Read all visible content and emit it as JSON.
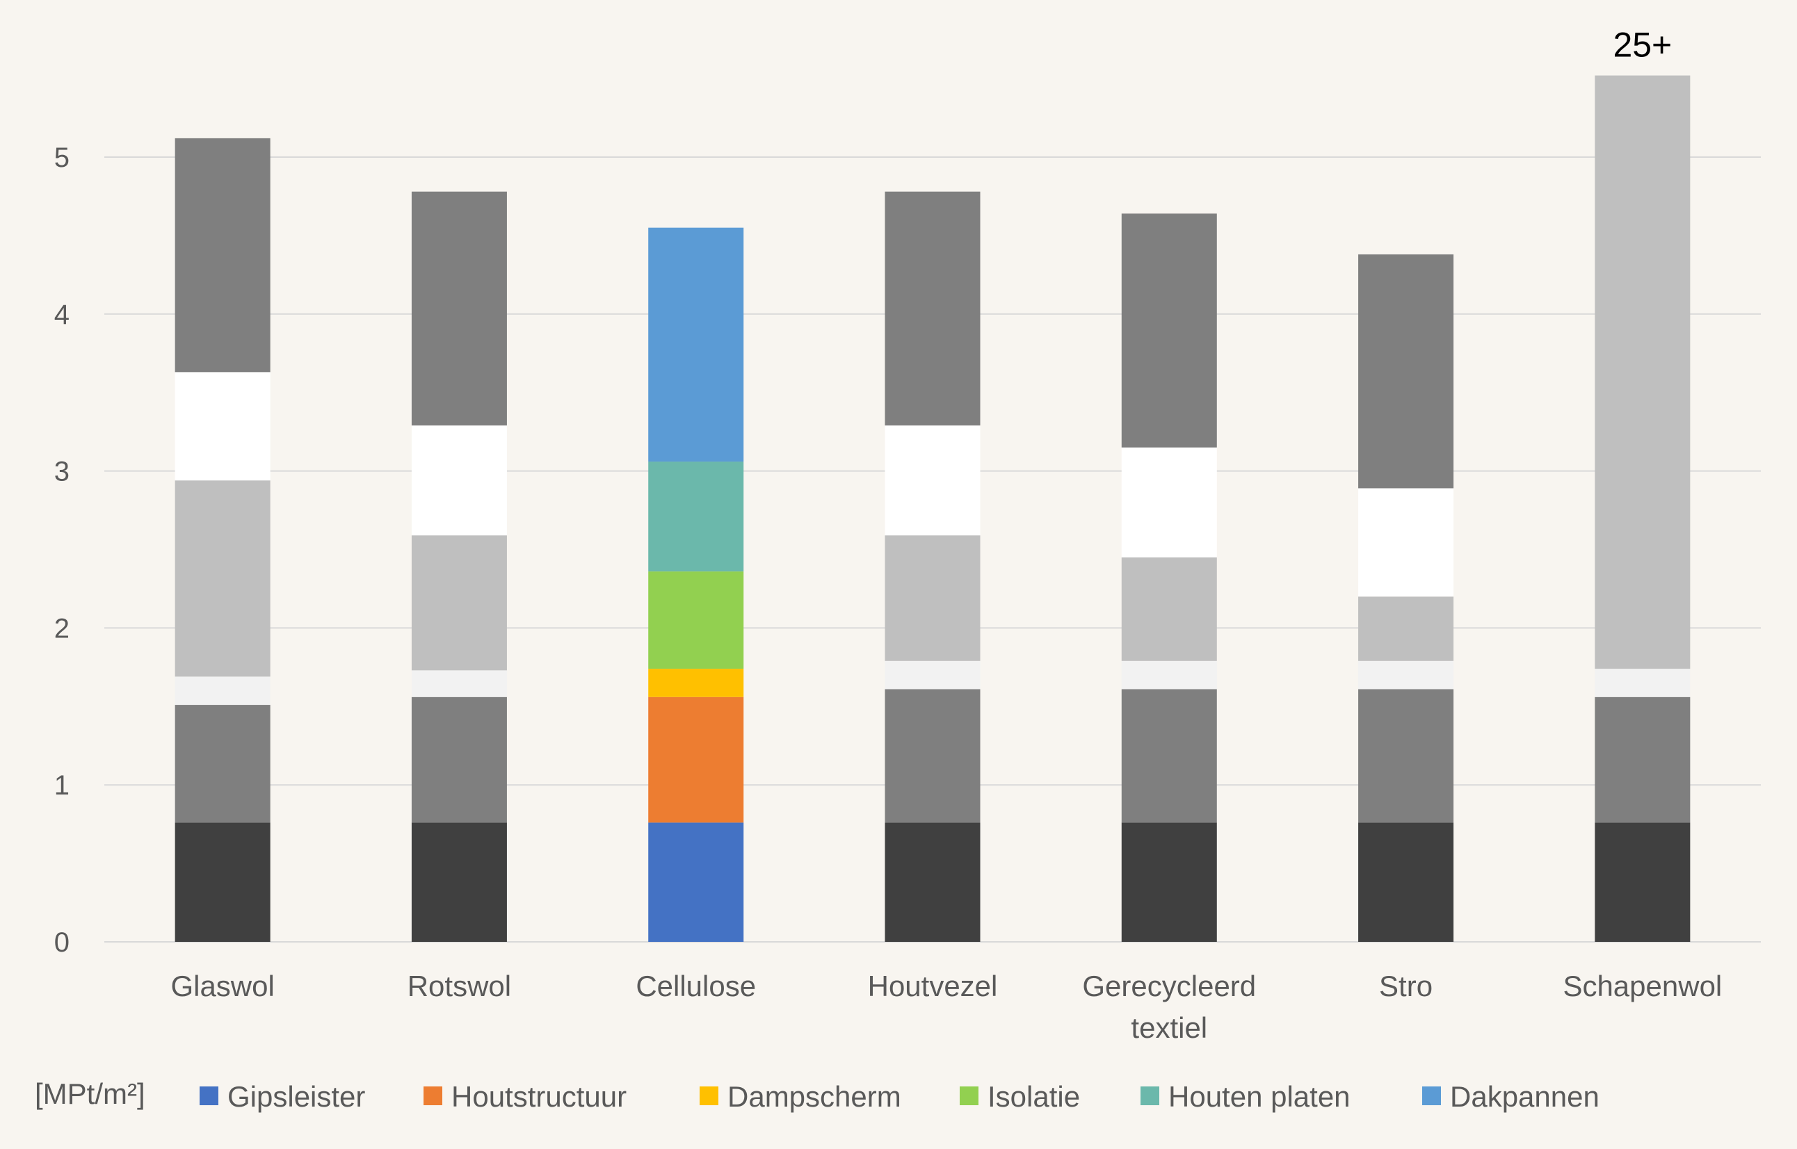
{
  "chart_data": {
    "type": "bar",
    "stacked": true,
    "unit_label": "[MPt/m²]",
    "ylim": [
      0,
      5.5
    ],
    "yticks": [
      "0",
      "1",
      "2",
      "3",
      "4",
      "5"
    ],
    "grid": true,
    "legend_position": "bottom",
    "categories": [
      [
        "Glaswol"
      ],
      [
        "Rotswol"
      ],
      [
        "Cellulose"
      ],
      [
        "Houtvezel"
      ],
      [
        "Gerecycleerd",
        "textiel"
      ],
      [
        "Stro"
      ],
      [
        "Schapenwol"
      ]
    ],
    "highlight_category_index": 2,
    "series": [
      {
        "name": "Gipsleister",
        "color": "#4472c4",
        "gray": "#404040",
        "values": [
          0.76,
          0.76,
          0.76,
          0.76,
          0.76,
          0.76,
          0.76
        ]
      },
      {
        "name": "Houtstructuur",
        "color": "#ed7d31",
        "gray": "#7f7f7f",
        "values": [
          0.75,
          0.8,
          0.8,
          0.85,
          0.85,
          0.85,
          0.8
        ]
      },
      {
        "name": "Dampscherm",
        "color": "#ffc000",
        "gray": "#f2f2f2",
        "values": [
          0.18,
          0.17,
          0.18,
          0.18,
          0.18,
          0.18,
          0.18
        ]
      },
      {
        "name": "Isolatie",
        "color": "#92d050",
        "gray": "#bfbfbf",
        "values": [
          1.25,
          0.86,
          0.62,
          0.8,
          0.66,
          0.41,
          3.78
        ]
      },
      {
        "name": "Houten platen",
        "color": "#6bb8ab",
        "gray": "#ffffff",
        "values": [
          0.69,
          0.7,
          0.7,
          0.7,
          0.7,
          0.69,
          0
        ]
      },
      {
        "name": "Dakpannen",
        "color": "#5b9bd5",
        "gray": "#7f7f7f",
        "values": [
          1.49,
          1.49,
          1.49,
          1.49,
          1.49,
          1.49,
          0
        ]
      }
    ],
    "annotations": [
      {
        "category_index": 6,
        "text": "25+"
      }
    ]
  }
}
